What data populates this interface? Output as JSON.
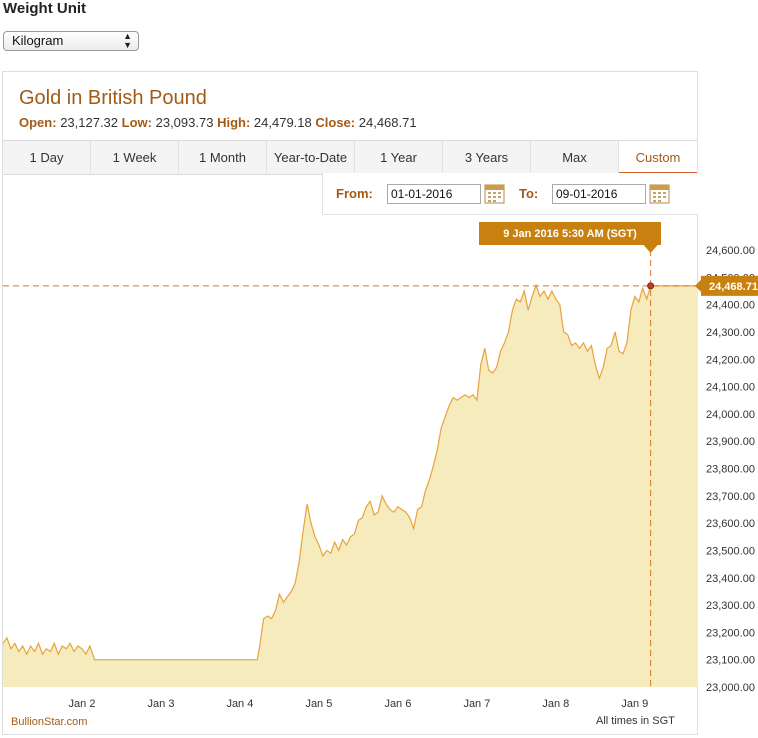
{
  "weight": {
    "heading": "Weight Unit",
    "selected": "Kilogram"
  },
  "header": {
    "title": "Gold in British Pound",
    "open_label": "Open:",
    "open": "23,127.32",
    "low_label": "Low:",
    "low": "23,093.73",
    "high_label": "High:",
    "high": "24,479.18",
    "close_label": "Close:",
    "close": "24,468.71"
  },
  "tabs": [
    "1 Day",
    "1 Week",
    "1 Month",
    "Year-to-Date",
    "1 Year",
    "3 Years",
    "Max",
    "Custom"
  ],
  "active_tab": "Custom",
  "range": {
    "from_label": "From:",
    "from_value": "01-01-2016",
    "to_label": "To:",
    "to_value": "09-01-2016"
  },
  "tooltip": {
    "time": "9 Jan 2016 5:30 AM (SGT)",
    "value_label": "24,468.71"
  },
  "source": "BullionStar.com",
  "timezone_note": "All times in SGT",
  "colors": {
    "accent": "#a45a17",
    "line": "#e8a33d",
    "fill": "#f5ebbd",
    "tooltip_bg": "#c8800f"
  },
  "chart_data": {
    "type": "area",
    "title": "Gold in British Pound",
    "x_ticks": [
      "Jan 2",
      "Jan 3",
      "Jan 4",
      "Jan 5",
      "Jan 6",
      "Jan 7",
      "Jan 8",
      "Jan 9"
    ],
    "y_ticks": [
      "23,000.00",
      "23,100.00",
      "23,200.00",
      "23,300.00",
      "23,400.00",
      "23,500.00",
      "23,600.00",
      "23,700.00",
      "23,800.00",
      "23,900.00",
      "24,000.00",
      "24,100.00",
      "24,200.00",
      "24,300.00",
      "24,400.00",
      "24,500.00",
      "24,600.00"
    ],
    "ylim": [
      23000,
      24650
    ],
    "xlim": [
      1.0,
      9.8
    ],
    "grid": false,
    "series": [
      {
        "x": [
          1.0,
          1.05,
          1.1,
          1.15,
          1.2,
          1.25,
          1.3,
          1.35,
          1.4,
          1.45,
          1.5,
          1.55,
          1.6,
          1.65,
          1.7,
          1.75,
          1.8,
          1.85,
          1.9,
          1.95,
          2.0,
          2.05,
          2.1,
          2.16,
          2.5,
          3.0,
          3.5,
          4.0,
          4.22,
          4.25,
          4.3,
          4.35,
          4.4,
          4.45,
          4.5,
          4.55,
          4.6,
          4.65,
          4.7,
          4.75,
          4.8,
          4.85,
          4.9,
          4.95,
          5.0,
          5.05,
          5.1,
          5.15,
          5.2,
          5.25,
          5.3,
          5.35,
          5.4,
          5.45,
          5.5,
          5.55,
          5.6,
          5.65,
          5.7,
          5.75,
          5.8,
          5.85,
          5.9,
          5.95,
          6.0,
          6.05,
          6.1,
          6.15,
          6.2,
          6.25,
          6.3,
          6.35,
          6.4,
          6.45,
          6.5,
          6.55,
          6.6,
          6.65,
          6.7,
          6.75,
          6.8,
          6.85,
          6.9,
          6.95,
          7.0,
          7.05,
          7.1,
          7.15,
          7.2,
          7.25,
          7.3,
          7.35,
          7.4,
          7.45,
          7.5,
          7.55,
          7.6,
          7.65,
          7.7,
          7.75,
          7.8,
          7.85,
          7.9,
          7.95,
          8.0,
          8.05,
          8.1,
          8.15,
          8.2,
          8.25,
          8.3,
          8.35,
          8.4,
          8.45,
          8.5,
          8.55,
          8.6,
          8.65,
          8.7,
          8.75,
          8.8,
          8.85,
          8.9,
          8.95,
          9.0,
          9.05,
          9.1,
          9.15,
          9.2,
          9.8
        ],
        "y": [
          23160,
          23180,
          23140,
          23160,
          23130,
          23150,
          23120,
          23150,
          23130,
          23160,
          23120,
          23140,
          23130,
          23160,
          23120,
          23150,
          23140,
          23160,
          23130,
          23150,
          23140,
          23120,
          23150,
          23100,
          23100,
          23100,
          23100,
          23100,
          23100,
          23150,
          23250,
          23260,
          23250,
          23280,
          23340,
          23310,
          23330,
          23350,
          23380,
          23460,
          23570,
          23670,
          23600,
          23550,
          23520,
          23480,
          23500,
          23490,
          23530,
          23500,
          23540,
          23520,
          23550,
          23560,
          23610,
          23620,
          23660,
          23680,
          23630,
          23640,
          23700,
          23670,
          23650,
          23640,
          23660,
          23650,
          23640,
          23620,
          23580,
          23650,
          23660,
          23720,
          23760,
          23810,
          23870,
          23950,
          23990,
          24030,
          24060,
          24050,
          24060,
          24070,
          24060,
          24070,
          24050,
          24180,
          24240,
          24160,
          24150,
          24170,
          24230,
          24260,
          24300,
          24380,
          24420,
          24410,
          24450,
          24380,
          24430,
          24470,
          24430,
          24450,
          24420,
          24450,
          24420,
          24400,
          24300,
          24290,
          24250,
          24260,
          24240,
          24260,
          24230,
          24250,
          24180,
          24130,
          24170,
          24240,
          24250,
          24300,
          24230,
          24220,
          24260,
          24380,
          24430,
          24410,
          24460,
          24420,
          24468.71,
          24468.71
        ]
      }
    ],
    "highlight_point": {
      "x": 9.2,
      "y": 24468.71
    }
  }
}
